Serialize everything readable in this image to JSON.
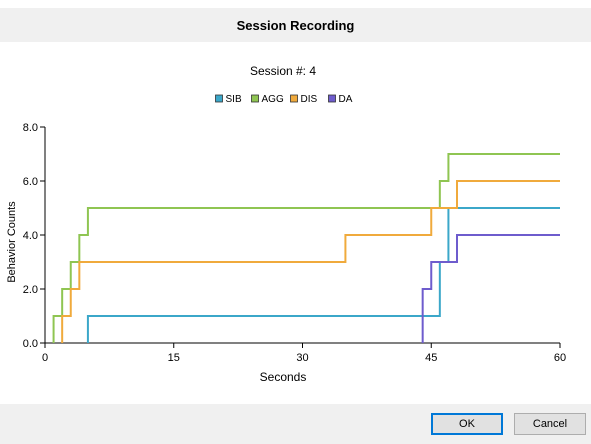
{
  "window": {
    "title": "Session Recording"
  },
  "buttons": {
    "ok": "OK",
    "cancel": "Cancel"
  },
  "colors": {
    "SIB": "#3ba7c9",
    "AGG": "#8fc552",
    "DIS": "#f0aa3c",
    "DA": "#6e5ccd"
  },
  "chart_data": {
    "type": "line",
    "step": true,
    "title": "Session #: 4",
    "xlabel": "Seconds",
    "ylabel": "Behavior Counts",
    "xlim": [
      0,
      60
    ],
    "ylim": [
      0,
      8
    ],
    "xticks": [
      0,
      15,
      30,
      45,
      60
    ],
    "yticks": [
      0,
      2,
      4,
      6,
      8
    ],
    "xtick_labels": [
      "0",
      "15",
      "30",
      "45",
      "60"
    ],
    "ytick_labels": [
      "0.0",
      "2.0",
      "4.0",
      "6.0",
      "8.0"
    ],
    "legend_position": "top-center",
    "grid": false,
    "series": [
      {
        "name": "SIB",
        "color": "#3ba7c9",
        "x": [
          5,
          5,
          46,
          46,
          47,
          47,
          60
        ],
        "y": [
          0,
          1,
          1,
          3,
          3,
          5,
          5
        ]
      },
      {
        "name": "AGG",
        "color": "#8fc552",
        "x": [
          1,
          1,
          2,
          2,
          3,
          3,
          4,
          4,
          5,
          5,
          46,
          46,
          47,
          47,
          60
        ],
        "y": [
          0,
          1,
          1,
          2,
          2,
          3,
          3,
          4,
          4,
          5,
          5,
          6,
          6,
          7,
          7
        ]
      },
      {
        "name": "DIS",
        "color": "#f0aa3c",
        "x": [
          2,
          2,
          3,
          3,
          4,
          4,
          35,
          35,
          45,
          45,
          48,
          48,
          60
        ],
        "y": [
          0,
          1,
          1,
          2,
          2,
          3,
          3,
          4,
          4,
          5,
          5,
          6,
          6
        ]
      },
      {
        "name": "DA",
        "color": "#6e5ccd",
        "x": [
          44,
          44,
          45,
          45,
          48,
          48,
          60
        ],
        "y": [
          0,
          2,
          2,
          3,
          3,
          4,
          4
        ]
      }
    ]
  }
}
